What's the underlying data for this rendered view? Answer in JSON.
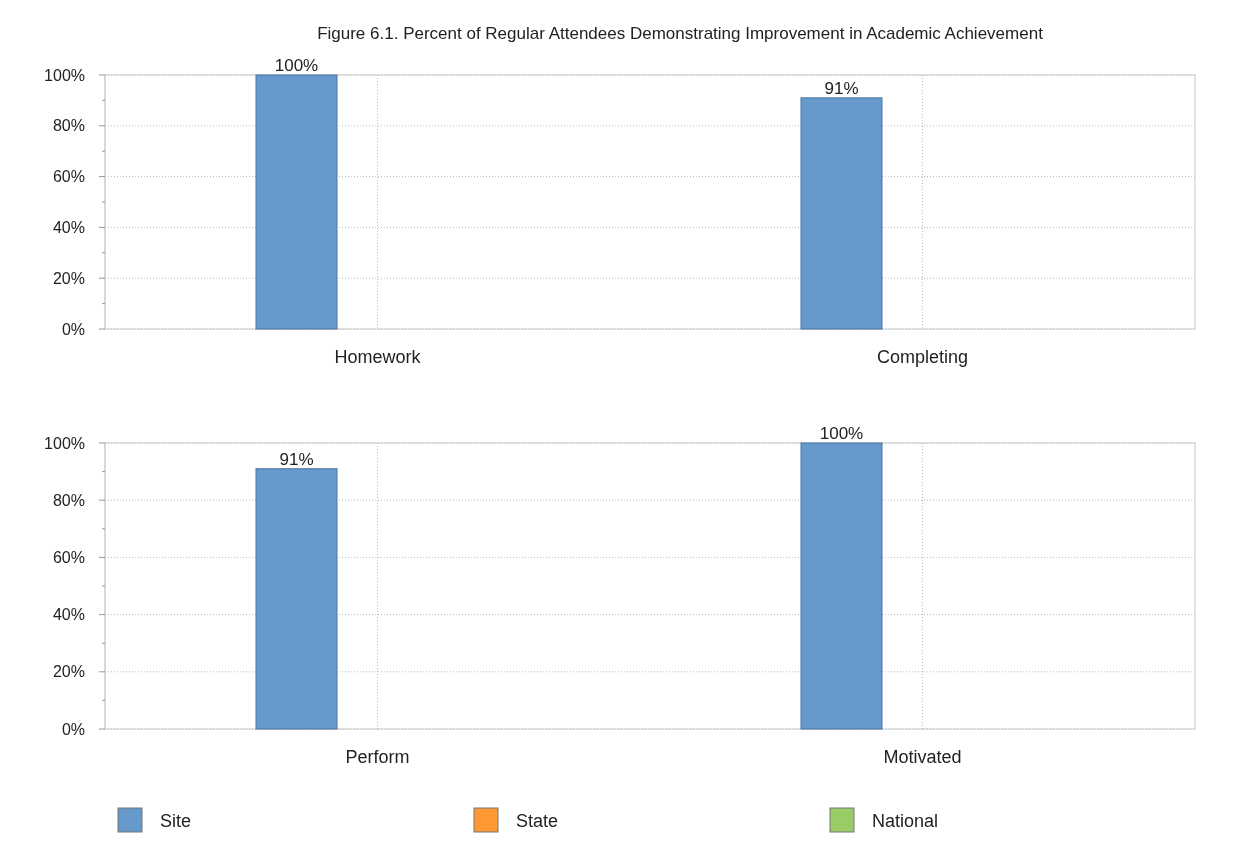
{
  "chart_data": [
    {
      "type": "bar",
      "title": "Figure 6.1. Percent of Regular Attendees Demonstrating Improvement in Academic Achievement",
      "categories": [
        "Homework",
        "Completing"
      ],
      "series": [
        {
          "color": "#6699cc",
          "values": [
            100,
            91
          ],
          "value_labels": [
            "100%",
            "91%"
          ]
        },
        {
          "values": [
            null,
            null
          ]
        },
        {
          "values": [
            null,
            null
          ]
        }
      ],
      "ylim": [
        0,
        100
      ],
      "yticks": [
        {
          "value": 0,
          "label": "0%"
        },
        {
          "value": 10,
          "label": null
        },
        {
          "value": 20,
          "label": "20%"
        },
        {
          "value": 30,
          "label": null
        },
        {
          "value": 40,
          "label": "40%"
        },
        {
          "value": 50,
          "label": null
        },
        {
          "value": 60,
          "label": "60%"
        },
        {
          "value": 70,
          "label": null
        },
        {
          "value": 80,
          "label": "80%"
        },
        {
          "value": 90,
          "label": null
        },
        {
          "value": 100,
          "label": "100%"
        }
      ],
      "grid": true
    },
    {
      "type": "bar",
      "categories": [
        "Perform",
        "Motivated"
      ],
      "series": [
        {
          "name": "Site",
          "color": "#6699cc",
          "values": [
            91,
            100
          ],
          "value_labels": [
            "91%",
            "100%"
          ]
        },
        {
          "name": "State",
          "color": "#ff9933",
          "values": [
            null,
            null
          ]
        },
        {
          "name": "National",
          "color": "#99cc66",
          "values": [
            null,
            null
          ]
        }
      ],
      "ylim": [
        0,
        100
      ],
      "yticks": [
        {
          "value": 0,
          "label": "0%"
        },
        {
          "value": 10,
          "label": null
        },
        {
          "value": 20,
          "label": "20%"
        },
        {
          "value": 30,
          "label": null
        },
        {
          "value": 40,
          "label": "40%"
        },
        {
          "value": 50,
          "label": null
        },
        {
          "value": 60,
          "label": "60%"
        },
        {
          "value": 70,
          "label": null
        },
        {
          "value": 80,
          "label": "80%"
        },
        {
          "value": 90,
          "label": null
        },
        {
          "value": 100,
          "label": "100%"
        }
      ],
      "grid": true,
      "legend": "bottom"
    }
  ]
}
